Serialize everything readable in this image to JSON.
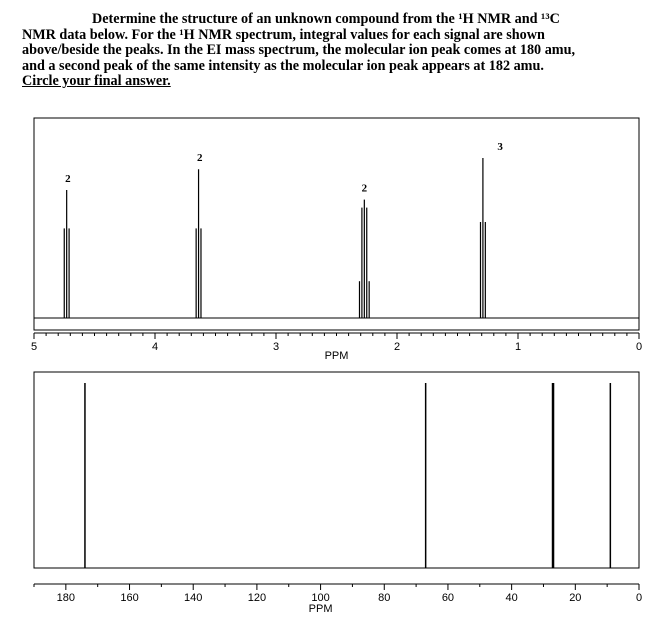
{
  "question": {
    "line1": "Determine the structure of an unknown compound from the ",
    "line1_h": "¹H NMR and ¹³C",
    "line2a": "NMR data below. For the ",
    "line2_h": "¹H NMR spectrum, integral values for each signal are shown",
    "line3": "above/beside the peaks. In the EI mass spectrum, the molecular ion peak comes at 180 amu,",
    "line4": "and a second peak of the same intensity as the molecular ion peak appears at 182 amu.",
    "line5": "Circle your final answer."
  },
  "h_nmr": {
    "xlabel": "PPM",
    "xlim": [
      5,
      0
    ],
    "ticks": [
      "5",
      "4",
      "3",
      "2",
      "1",
      "0"
    ],
    "peaks": [
      {
        "ppm": 4.72,
        "integral": "2",
        "lines": [
          [
            4.75,
            0.56
          ],
          [
            4.73,
            0.8
          ],
          [
            4.71,
            0.56
          ]
        ]
      },
      {
        "ppm": 3.63,
        "integral": "2",
        "lines": [
          [
            3.66,
            0.56
          ],
          [
            3.64,
            0.93
          ],
          [
            3.62,
            0.56
          ]
        ]
      },
      {
        "ppm": 2.27,
        "integral": "2",
        "lines": [
          [
            2.31,
            0.23
          ],
          [
            2.29,
            0.69
          ],
          [
            2.27,
            0.74
          ],
          [
            2.25,
            0.69
          ],
          [
            2.23,
            0.23
          ]
        ]
      },
      {
        "ppm": 1.28,
        "integral": "3",
        "lines": [
          [
            1.31,
            0.6
          ],
          [
            1.29,
            1.0
          ],
          [
            1.27,
            0.6
          ]
        ]
      }
    ]
  },
  "c_nmr": {
    "xlabel": "PPM",
    "xlim": [
      190,
      0
    ],
    "ticks": [
      "180",
      "160",
      "140",
      "120",
      "100",
      "80",
      "60",
      "40",
      "20",
      "0"
    ],
    "peaks": [
      174,
      67,
      27,
      9
    ]
  }
}
